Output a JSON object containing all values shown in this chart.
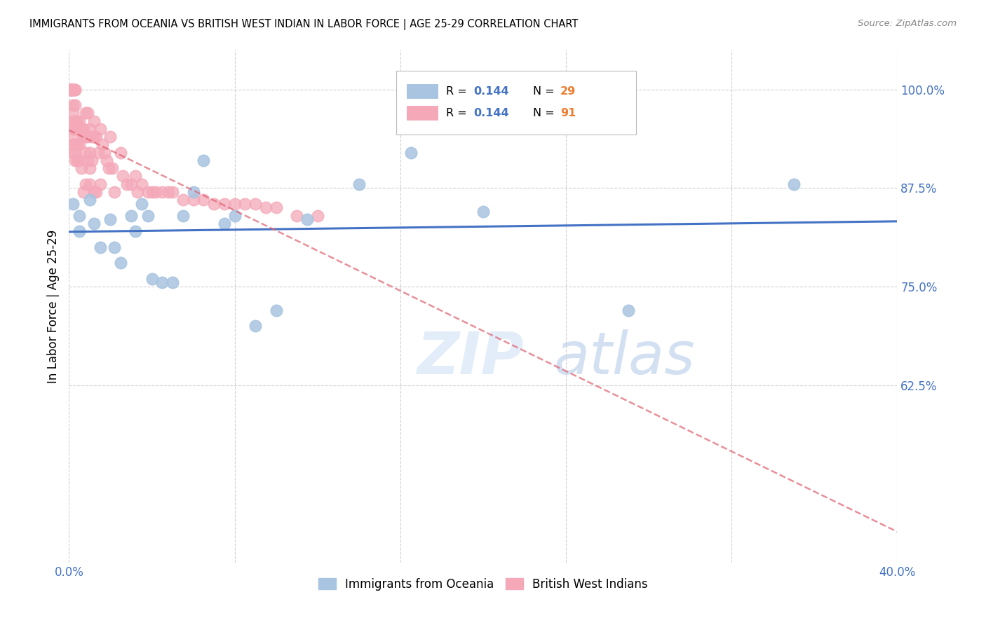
{
  "title": "IMMIGRANTS FROM OCEANIA VS BRITISH WEST INDIAN IN LABOR FORCE | AGE 25-29 CORRELATION CHART",
  "source": "Source: ZipAtlas.com",
  "ylabel": "In Labor Force | Age 25-29",
  "xlim": [
    0.0,
    0.4
  ],
  "ylim": [
    0.4,
    1.05
  ],
  "yticks": [
    0.625,
    0.75,
    0.875,
    1.0
  ],
  "ytick_labels": [
    "62.5%",
    "75.0%",
    "87.5%",
    "100.0%"
  ],
  "oceania_r": 0.144,
  "oceania_n": 29,
  "bwi_r": 0.144,
  "bwi_n": 91,
  "oceania_color": "#a8c4e0",
  "bwi_color": "#f4a8b8",
  "trendline_oceania_color": "#4472c4",
  "trendline_bwi_color": "#e06070",
  "legend_label_oceania": "Immigrants from Oceania",
  "legend_label_bwi": "British West Indians",
  "watermark": "ZIPatlas",
  "oceania_x": [
    0.002,
    0.005,
    0.005,
    0.01,
    0.012,
    0.015,
    0.02,
    0.022,
    0.025,
    0.03,
    0.032,
    0.035,
    0.038,
    0.04,
    0.045,
    0.05,
    0.055,
    0.06,
    0.065,
    0.075,
    0.08,
    0.09,
    0.1,
    0.115,
    0.14,
    0.165,
    0.2,
    0.27,
    0.35
  ],
  "oceania_y": [
    0.855,
    0.84,
    0.82,
    0.86,
    0.83,
    0.8,
    0.835,
    0.8,
    0.78,
    0.84,
    0.82,
    0.855,
    0.84,
    0.76,
    0.755,
    0.755,
    0.84,
    0.87,
    0.91,
    0.83,
    0.84,
    0.7,
    0.72,
    0.835,
    0.88,
    0.92,
    0.845,
    0.72,
    0.88
  ],
  "bwi_x": [
    0.001,
    0.001,
    0.001,
    0.001,
    0.001,
    0.001,
    0.001,
    0.002,
    0.002,
    0.002,
    0.002,
    0.002,
    0.002,
    0.002,
    0.002,
    0.002,
    0.002,
    0.003,
    0.003,
    0.003,
    0.003,
    0.003,
    0.003,
    0.003,
    0.003,
    0.004,
    0.004,
    0.004,
    0.004,
    0.005,
    0.005,
    0.005,
    0.005,
    0.006,
    0.006,
    0.007,
    0.007,
    0.007,
    0.008,
    0.008,
    0.008,
    0.008,
    0.009,
    0.009,
    0.009,
    0.01,
    0.01,
    0.01,
    0.01,
    0.011,
    0.011,
    0.012,
    0.012,
    0.012,
    0.013,
    0.013,
    0.014,
    0.015,
    0.015,
    0.016,
    0.017,
    0.018,
    0.019,
    0.02,
    0.021,
    0.022,
    0.025,
    0.026,
    0.028,
    0.03,
    0.032,
    0.033,
    0.035,
    0.038,
    0.04,
    0.042,
    0.045,
    0.048,
    0.05,
    0.055,
    0.06,
    0.065,
    0.07,
    0.075,
    0.08,
    0.085,
    0.09,
    0.095,
    0.1,
    0.11,
    0.12
  ],
  "bwi_y": [
    1.0,
    1.0,
    1.0,
    1.0,
    1.0,
    1.0,
    1.0,
    1.0,
    1.0,
    1.0,
    0.98,
    0.97,
    0.96,
    0.95,
    0.94,
    0.93,
    0.92,
    1.0,
    1.0,
    0.98,
    0.96,
    0.95,
    0.93,
    0.92,
    0.91,
    0.96,
    0.95,
    0.93,
    0.91,
    0.96,
    0.95,
    0.93,
    0.91,
    0.95,
    0.9,
    0.95,
    0.94,
    0.87,
    0.97,
    0.94,
    0.92,
    0.88,
    0.97,
    0.94,
    0.91,
    0.95,
    0.92,
    0.9,
    0.88,
    0.94,
    0.91,
    0.96,
    0.94,
    0.87,
    0.94,
    0.87,
    0.92,
    0.95,
    0.88,
    0.93,
    0.92,
    0.91,
    0.9,
    0.94,
    0.9,
    0.87,
    0.92,
    0.89,
    0.88,
    0.88,
    0.89,
    0.87,
    0.88,
    0.87,
    0.87,
    0.87,
    0.87,
    0.87,
    0.87,
    0.86,
    0.86,
    0.86,
    0.855,
    0.855,
    0.855,
    0.855,
    0.855,
    0.85,
    0.85,
    0.84,
    0.84
  ]
}
